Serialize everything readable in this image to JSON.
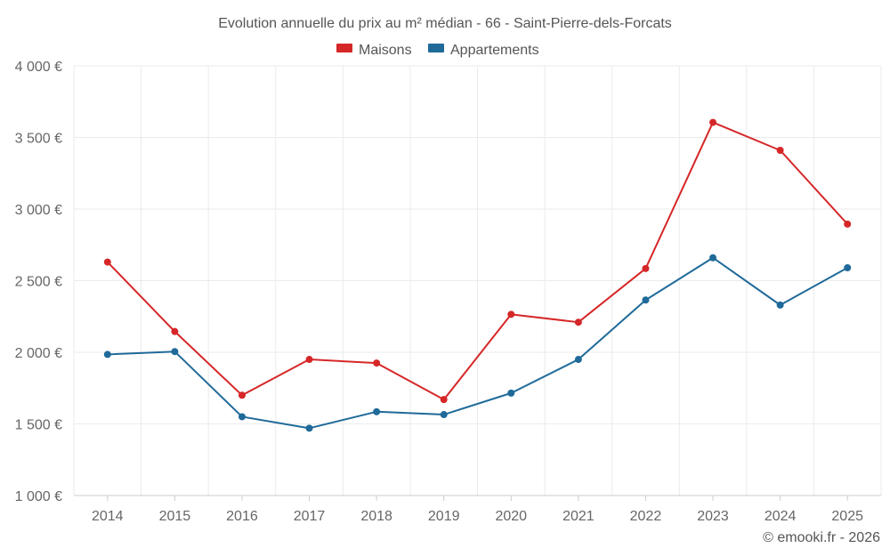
{
  "chart_data": {
    "type": "line",
    "title": "Evolution annuelle du prix au m² médian - 66 - Saint-Pierre-dels-Forcats",
    "categories": [
      "2014",
      "2015",
      "2016",
      "2017",
      "2018",
      "2019",
      "2020",
      "2021",
      "2022",
      "2023",
      "2024",
      "2025"
    ],
    "series": [
      {
        "name": "Maisons",
        "color": "#d62728",
        "values": [
          2630,
          2145,
          1700,
          1950,
          1925,
          1670,
          2265,
          2210,
          2585,
          3605,
          3410,
          2895
        ]
      },
      {
        "name": "Appartements",
        "color": "#1f6a99",
        "values": [
          1985,
          2005,
          1550,
          1470,
          1585,
          1565,
          1715,
          1950,
          2365,
          2660,
          2330,
          2590
        ]
      }
    ],
    "ylim": [
      1000,
      4000
    ],
    "yticks": [
      1000,
      1500,
      2000,
      2500,
      3000,
      3500,
      4000
    ],
    "ytick_labels": [
      "1 000 €",
      "1 500 €",
      "2 000 €",
      "2 500 €",
      "3 000 €",
      "3 500 €",
      "4 000 €"
    ],
    "legend_position": "top-center",
    "grid": true,
    "credit": "© emooki.fr - 2026"
  }
}
